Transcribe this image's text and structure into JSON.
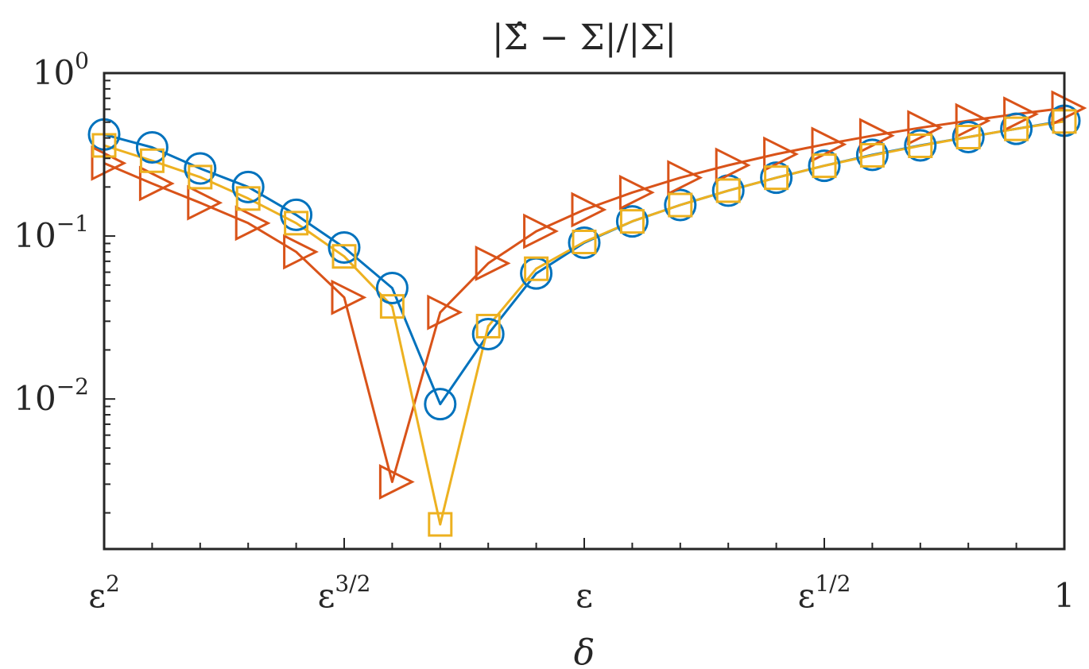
{
  "chart_data": {
    "type": "line",
    "title": "|Σ̂ − Σ|/|Σ|",
    "xlabel": "δ",
    "ylabel": "",
    "x_scale": "log",
    "y_scale": "log",
    "x_ticks": [
      {
        "base": "ε",
        "exp": "2"
      },
      {
        "base": "ε",
        "exp": "3/2"
      },
      {
        "base": "ε",
        "exp": ""
      },
      {
        "base": "ε",
        "exp": "1/2"
      },
      {
        "base": "1",
        "exp": ""
      }
    ],
    "y_ticks": [
      {
        "base": "10",
        "exp": "0"
      },
      {
        "base": "10",
        "exp": "−1"
      },
      {
        "base": "10",
        "exp": "−2"
      }
    ],
    "x_power_range": [
      2,
      0
    ],
    "ylim": [
      0.0012,
      1
    ],
    "grid": false,
    "legend": "none",
    "x_powers": [
      2,
      1.9,
      1.8,
      1.7,
      1.6,
      1.5,
      1.4,
      1.3,
      1.2,
      1.1,
      1.0,
      0.9,
      0.8,
      0.7,
      0.6,
      0.5,
      0.4,
      0.3,
      0.2,
      0.1,
      0.0
    ],
    "series": [
      {
        "marker": "circle",
        "color": "#0072BD",
        "values": [
          0.42,
          0.35,
          0.26,
          0.2,
          0.135,
          0.085,
          0.048,
          0.0093,
          0.025,
          0.059,
          0.091,
          0.123,
          0.155,
          0.19,
          0.228,
          0.27,
          0.315,
          0.36,
          0.405,
          0.455,
          0.51
        ]
      },
      {
        "marker": "triangle-right",
        "color": "#D95319",
        "values": [
          0.28,
          0.21,
          0.16,
          0.12,
          0.08,
          0.042,
          0.0031,
          0.034,
          0.068,
          0.107,
          0.145,
          0.185,
          0.228,
          0.272,
          0.318,
          0.365,
          0.413,
          0.462,
          0.51,
          0.56,
          0.61
        ]
      },
      {
        "marker": "square",
        "color": "#EDB120",
        "values": [
          0.36,
          0.29,
          0.23,
          0.17,
          0.12,
          0.075,
          0.037,
          0.0017,
          0.028,
          0.063,
          0.092,
          0.123,
          0.155,
          0.19,
          0.228,
          0.27,
          0.313,
          0.358,
          0.405,
          0.455,
          0.505
        ]
      }
    ]
  }
}
